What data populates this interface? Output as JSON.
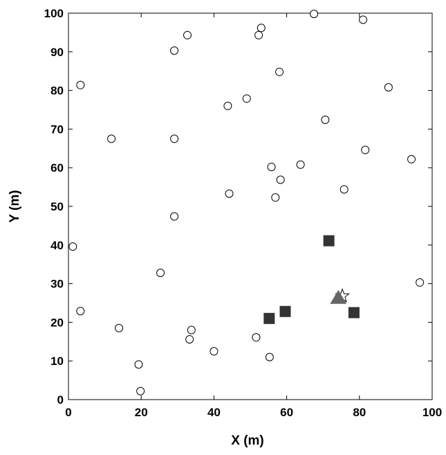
{
  "chart_data": {
    "type": "scatter",
    "title": "",
    "xlabel": "X (m)",
    "ylabel": "Y (m)",
    "xlim": [
      0,
      100
    ],
    "ylim": [
      0,
      100
    ],
    "xticks": [
      0,
      20,
      40,
      60,
      80,
      100
    ],
    "yticks": [
      0,
      10,
      20,
      30,
      40,
      50,
      60,
      70,
      80,
      90,
      100
    ],
    "grid": false,
    "legend": "none",
    "series": [
      {
        "marker": "circle-open",
        "color": "#000000",
        "x": [
          67.5,
          81,
          53,
          52.3,
          32.7,
          29.1,
          58,
          3.3,
          88,
          43.8,
          49,
          70.6,
          11.8,
          29.1,
          81.6,
          94.3,
          63.8,
          55.8,
          58.3,
          75.8,
          44.2,
          56.9,
          29.1,
          1.2,
          25.3,
          96.6,
          3.3,
          13.9,
          33.8,
          33.3,
          51.6,
          40,
          55.3,
          19.3,
          19.8
        ],
        "y": [
          99.8,
          98.3,
          96.2,
          94.3,
          94.3,
          90.3,
          84.8,
          81.4,
          80.8,
          76,
          77.9,
          72.4,
          67.5,
          67.5,
          64.6,
          62.2,
          60.8,
          60.2,
          56.9,
          54.4,
          53.3,
          52.3,
          47.4,
          39.6,
          32.8,
          30.3,
          22.9,
          18.5,
          18,
          15.6,
          16.1,
          12.5,
          11,
          9.1,
          2.2
        ]
      },
      {
        "marker": "square-filled",
        "color": "#333333",
        "x": [
          71.6,
          59.6,
          55.2,
          78.5
        ],
        "y": [
          41.1,
          22.8,
          21,
          22.5
        ]
      },
      {
        "marker": "star-open",
        "color": "#000000",
        "x": [
          75.3
        ],
        "y": [
          26.8
        ]
      },
      {
        "marker": "triangle-filled",
        "color": "#666666",
        "x": [
          74.2
        ],
        "y": [
          26.2
        ]
      }
    ]
  }
}
